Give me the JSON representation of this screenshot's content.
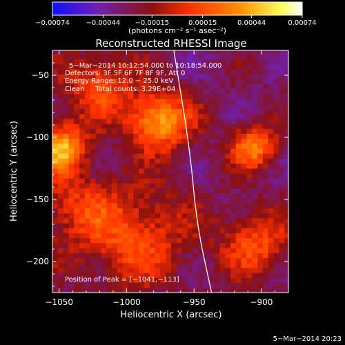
{
  "chart_data": {
    "type": "heatmap",
    "title": "Reconstructed RHESSI Image",
    "xlabel": "Heliocentric X (arcsec)",
    "ylabel": "Heliocentric Y (arcsec)",
    "xlim": [
      -1055,
      -880
    ],
    "ylim": [
      -225,
      -30
    ],
    "x_ticks": [
      -1050,
      -1000,
      -950,
      -900
    ],
    "x_tick_labels": [
      "−1050",
      "−1000",
      "−950",
      "−900"
    ],
    "y_ticks": [
      -50,
      -100,
      -150,
      -200
    ],
    "y_tick_labels": [
      "−50",
      "−100",
      "−150",
      "−200"
    ],
    "colorbar": {
      "range": [
        -0.00074,
        0.00074
      ],
      "ticks": [
        -0.00074,
        -0.00044,
        -0.00015,
        0.00015,
        0.00044,
        0.00074
      ],
      "tick_labels": [
        "−0.00074",
        "−0.00044",
        "−0.00015",
        "0.00015",
        "0.00044",
        "0.00074"
      ],
      "unit_label": "(photons cm⁻² s⁻¹ asec⁻²)",
      "colors": [
        "#1010ff",
        "#7020b0",
        "#8a1010",
        "#ff3000",
        "#ff9000",
        "#ffff60",
        "#ffffff"
      ]
    },
    "info_lines": [
      "5−Mar−2014 10:12:54.000 to 10:18:54.000",
      "Detectors: 3F 5F 6F 7F 8F 9F, Att 0",
      "Energy Range: 12.0 − 25.0 keV",
      "Clean     Total counts: 3.29E+04"
    ],
    "peak_label": "Position of Peak = [−1041,−113]",
    "peak": [
      -1041,
      -113
    ],
    "sources": [
      {
        "x": -976,
        "y": -87,
        "amplitude": 0.00074,
        "width": 16
      },
      {
        "x": -1050,
        "y": -108,
        "amplitude": 0.00074,
        "width": 14
      },
      {
        "x": -906,
        "y": -107,
        "amplitude": 0.0006,
        "width": 12
      },
      {
        "x": -1020,
        "y": -58,
        "amplitude": 0.00044,
        "width": 18
      },
      {
        "x": -995,
        "y": -180,
        "amplitude": 0.00044,
        "width": 28
      },
      {
        "x": -905,
        "y": -185,
        "amplitude": 0.00044,
        "width": 18
      },
      {
        "x": -1040,
        "y": -155,
        "amplitude": 0.0003,
        "width": 20
      }
    ],
    "limb_arc": [
      [
        -965,
        -30
      ],
      [
        -953,
        -110
      ],
      [
        -948,
        -170
      ],
      [
        -937,
        -225
      ]
    ],
    "date_stamp": "5−Mar−2014 20:23"
  }
}
